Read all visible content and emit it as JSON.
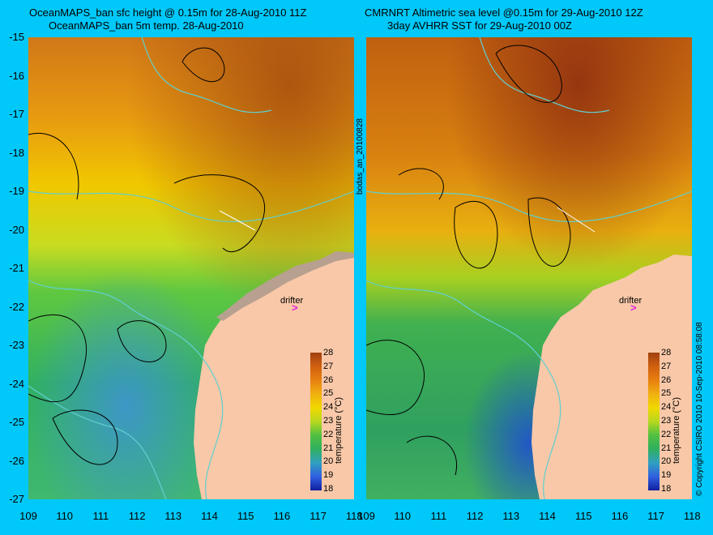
{
  "titles": {
    "left_line1": "OceanMAPS_ban sfc height @ 0.15m for 28-Aug-2010 11Z",
    "left_line2": "OceanMAPS_ban 5m temp. 28-Aug-2010",
    "right_line1": "CMRNRT Altimetric sea level  @0.15m  for 29-Aug-2010 12Z",
    "right_line2": "3day AVHRR SST for 29-Aug-2010 00Z"
  },
  "y_ticks": [
    "-15",
    "-16",
    "-17",
    "-18",
    "-19",
    "-20",
    "-21",
    "-22",
    "-23",
    "-24",
    "-25",
    "-26",
    "-27"
  ],
  "x_ticks": [
    "109",
    "110",
    "111",
    "112",
    "113",
    "114",
    "115",
    "116",
    "117",
    "118"
  ],
  "colorbar": {
    "ticks": [
      "28",
      "27",
      "26",
      "25",
      "24",
      "23",
      "22",
      "21",
      "20",
      "19",
      "18"
    ],
    "title": "temperature (°C)"
  },
  "labels": {
    "drifter": "drifter",
    "drifter_marker": ">",
    "analysis_id": "bodas_an_20100828",
    "copyright": "© Copyright CSIRO 2010  10-Sep-2010 08:58:08"
  },
  "colors": {
    "background": "#00c8f8",
    "land": "#f8c8a8",
    "coast_shelf": "#b8a090",
    "contour_black": "#000000",
    "contour_cyan": "#60d0d0",
    "drifter": "#e020e0"
  }
}
